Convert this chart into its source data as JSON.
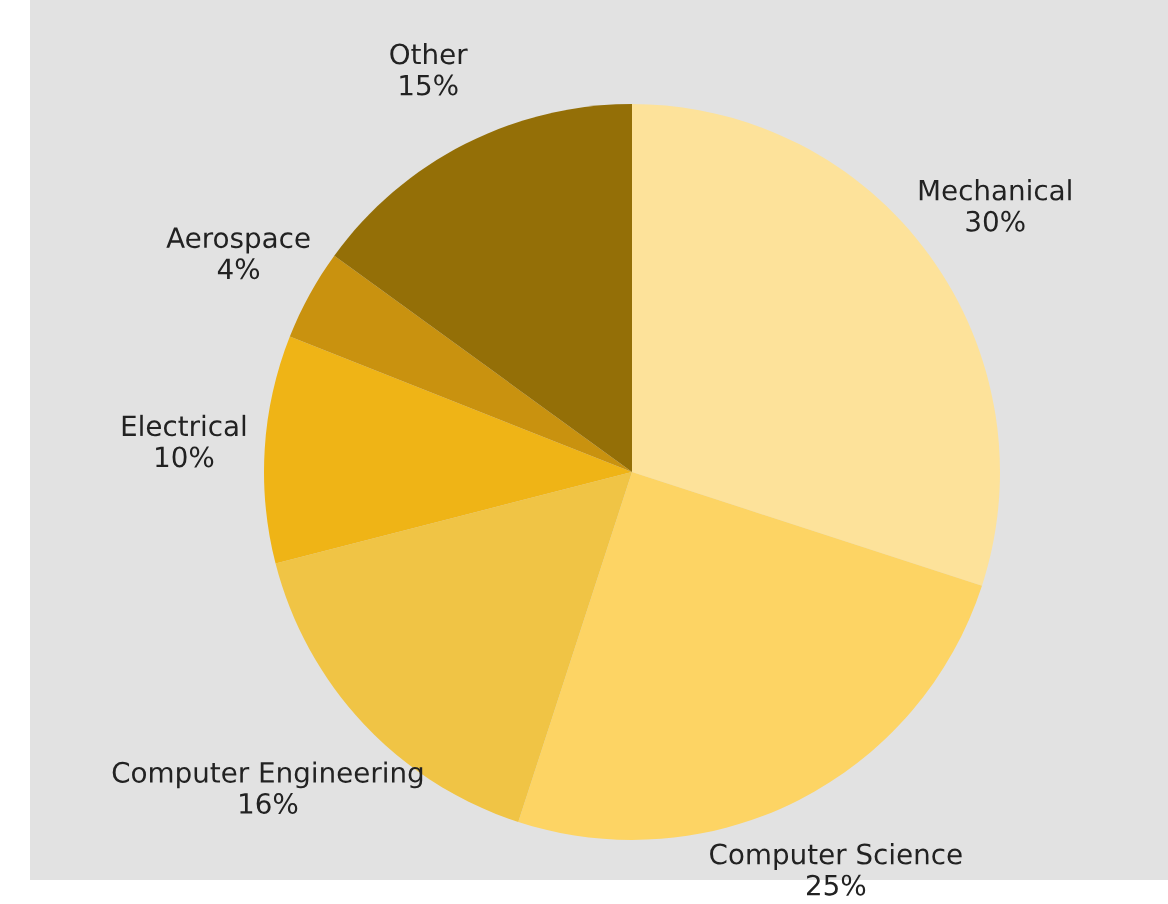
{
  "chart_data": {
    "type": "pie",
    "categories": [
      "Mechanical",
      "Computer Science",
      "Computer Engineering",
      "Electrical",
      "Aerospace",
      "Other"
    ],
    "values": [
      30,
      25,
      16,
      10,
      4,
      15
    ],
    "value_labels": [
      "30%",
      "25%",
      "16%",
      "10%",
      "4%",
      "15%"
    ],
    "colors": [
      "#fde29a",
      "#fdd464",
      "#f0c445",
      "#efb416",
      "#c9920f",
      "#946f07"
    ]
  }
}
